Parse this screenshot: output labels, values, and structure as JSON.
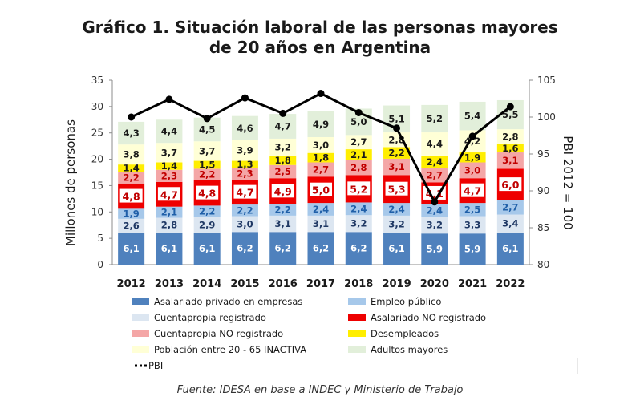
{
  "title_line1": "Gráfico 1. Situación laboral de las personas mayores",
  "title_line2": "de 20 años en Argentina",
  "source": "Fuente: IDESA en base a INDEC y Ministerio de Trabajo",
  "chart_data": {
    "type": "bar",
    "stacked": true,
    "categories": [
      "2012",
      "2013",
      "2014",
      "2015",
      "2016",
      "2017",
      "2018",
      "2019",
      "2020",
      "2021",
      "2022"
    ],
    "ylabel": "Millones de personas",
    "y2label": "PBI 2012 = 100",
    "ylim": [
      0,
      35
    ],
    "yticks": [
      0,
      5,
      10,
      15,
      20,
      25,
      30,
      35
    ],
    "y2lim": [
      80,
      105
    ],
    "y2ticks": [
      80,
      85,
      90,
      95,
      100,
      105
    ],
    "grid": false,
    "legend_position": "bottom",
    "series": [
      {
        "name": "Asalariado privado en empresas",
        "color": "#4f81bd",
        "label_color": "#ffffff",
        "values": [
          6.1,
          6.1,
          6.1,
          6.2,
          6.2,
          6.2,
          6.2,
          6.1,
          5.9,
          5.9,
          6.1
        ],
        "labels": [
          "6,1",
          "6,1",
          "6,1",
          "6,2",
          "6,2",
          "6,2",
          "6,2",
          "6,1",
          "5,9",
          "5,9",
          "6,1"
        ]
      },
      {
        "name": "Cuentapropia registrado",
        "color": "#dce6f1",
        "label_color": "#1f3864",
        "values": [
          2.6,
          2.8,
          2.9,
          3.0,
          3.1,
          3.1,
          3.2,
          3.2,
          3.2,
          3.3,
          3.4
        ],
        "labels": [
          "2,6",
          "2,8",
          "2,9",
          "3,0",
          "3,1",
          "3,1",
          "3,2",
          "3,2",
          "3,2",
          "3,3",
          "3,4"
        ]
      },
      {
        "name": "Empleo público",
        "color": "#a6c8ea",
        "label_color": "#1f5fa8",
        "values": [
          1.9,
          2.1,
          2.2,
          2.2,
          2.2,
          2.4,
          2.4,
          2.4,
          2.4,
          2.5,
          2.7
        ],
        "labels": [
          "1,9",
          "2,1",
          "2,2",
          "2,2",
          "2,2",
          "2,4",
          "2,4",
          "2,4",
          "2,4",
          "2,5",
          "2,7"
        ]
      },
      {
        "name": "Asalariado NO registrado",
        "color": "#ee0000",
        "label_color": "#c00000",
        "boxed_labels": true,
        "values": [
          4.8,
          4.7,
          4.8,
          4.7,
          4.9,
          5.0,
          5.2,
          5.3,
          4.1,
          4.7,
          6.0
        ],
        "labels": [
          "4,8",
          "4,7",
          "4,8",
          "4,7",
          "4,9",
          "5,0",
          "5,2",
          "5,3",
          "4,1",
          "4,7",
          "6,0"
        ]
      },
      {
        "name": "Cuentapropia NO registrado",
        "color": "#f4a6a6",
        "label_color": "#c00000",
        "values": [
          2.2,
          2.3,
          2.2,
          2.3,
          2.5,
          2.7,
          2.8,
          3.1,
          2.7,
          3.0,
          3.1
        ],
        "labels": [
          "2,2",
          "2,3",
          "2,2",
          "2,3",
          "2,5",
          "2,7",
          "2,8",
          "3,1",
          "2,7",
          "3,0",
          "3,1"
        ]
      },
      {
        "name": "Desempleados",
        "color": "#ffee00",
        "label_color": "#1a1a1a",
        "values": [
          1.4,
          1.4,
          1.5,
          1.3,
          1.8,
          1.8,
          2.1,
          2.2,
          2.4,
          1.9,
          1.6
        ],
        "labels": [
          "1,4",
          "1,4",
          "1,5",
          "1,3",
          "1,8",
          "1,8",
          "2,1",
          "2,2",
          "2,4",
          "1,9",
          "1,6"
        ]
      },
      {
        "name": "Población entre 20 - 65 INACTIVA",
        "color": "#ffffd6",
        "label_color": "#1a1a1a",
        "values": [
          3.8,
          3.7,
          3.7,
          3.9,
          3.2,
          3.0,
          2.7,
          2.8,
          4.4,
          4.2,
          2.8
        ],
        "labels": [
          "3,8",
          "3,7",
          "3,7",
          "3,9",
          "3,2",
          "3,0",
          "2,7",
          "2,8",
          "4,4",
          "4,2",
          "2,8"
        ]
      },
      {
        "name": "Adultos mayores",
        "color": "#e2efda",
        "label_color": "#1a1a1a",
        "values": [
          4.3,
          4.4,
          4.5,
          4.6,
          4.7,
          4.9,
          5.0,
          5.1,
          5.2,
          5.4,
          5.5
        ],
        "labels": [
          "4,3",
          "4,4",
          "4,5",
          "4,6",
          "4,7",
          "4,9",
          "5,0",
          "5,1",
          "5,2",
          "5,4",
          "5,5"
        ]
      }
    ],
    "line_series": {
      "name": "PBI",
      "axis": "right",
      "color": "#000000",
      "values": [
        100.0,
        102.4,
        99.8,
        102.6,
        100.5,
        103.2,
        100.6,
        98.5,
        88.5,
        97.4,
        101.4
      ]
    },
    "legend_items": [
      {
        "name": "Asalariado privado en empresas",
        "color": "#4f81bd",
        "kind": "bar"
      },
      {
        "name": "Empleo público",
        "color": "#a6c8ea",
        "kind": "bar"
      },
      {
        "name": "Cuentapropia registrado",
        "color": "#dce6f1",
        "kind": "bar"
      },
      {
        "name": "Asalariado NO registrado",
        "color": "#ee0000",
        "kind": "bar"
      },
      {
        "name": "Cuentapropia NO registrado",
        "color": "#f4a6a6",
        "kind": "bar"
      },
      {
        "name": "Desempleados",
        "color": "#ffee00",
        "kind": "bar"
      },
      {
        "name": "Población entre 20 - 65 INACTIVA",
        "color": "#ffffd6",
        "kind": "bar"
      },
      {
        "name": "Adultos mayores",
        "color": "#e2efda",
        "kind": "bar"
      },
      {
        "name": "PBI",
        "color": "#000000",
        "kind": "line"
      }
    ]
  }
}
